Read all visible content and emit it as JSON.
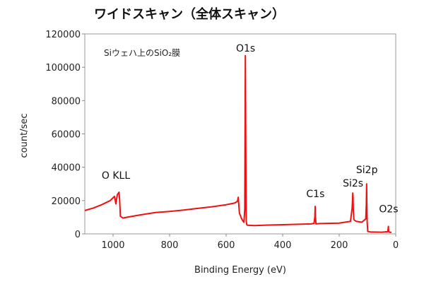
{
  "chart_data": {
    "type": "line",
    "title": "ワイドスキャン（全体スキャン）",
    "annotation": "Siウェハ上のSiO₂膜",
    "xlabel": "Binding Energy (eV)",
    "ylabel": "count/sec",
    "xlim": [
      1100,
      0
    ],
    "ylim": [
      0,
      120000
    ],
    "x_reversed": true,
    "grid": false,
    "x_ticks": [
      1000,
      800,
      600,
      400,
      200,
      0
    ],
    "y_ticks": [
      0,
      20000,
      40000,
      60000,
      80000,
      100000,
      120000
    ],
    "series": [
      {
        "color": "#ee1111",
        "x": [
          1100,
          1070,
          1040,
          1010,
          995,
          990,
          985,
          979,
          977,
          974,
          965,
          950,
          900,
          850,
          800,
          750,
          700,
          650,
          600,
          570,
          560,
          557,
          555,
          553,
          545,
          540,
          537,
          534,
          532,
          530,
          529,
          527,
          524,
          500,
          450,
          400,
          300,
          289,
          286,
          285,
          284,
          282,
          270,
          200,
          180,
          160,
          154,
          152,
          151,
          150,
          148,
          140,
          120,
          106,
          104,
          103,
          102,
          101,
          99,
          90,
          50,
          28,
          26,
          25,
          22,
          15
        ],
        "y": [
          14000,
          15500,
          17500,
          20000,
          22500,
          18000,
          23500,
          25000,
          21000,
          10500,
          9500,
          10000,
          11500,
          12800,
          13500,
          14300,
          15300,
          16300,
          17500,
          18500,
          19500,
          22000,
          17000,
          12500,
          9000,
          7500,
          7000,
          15000,
          107000,
          35000,
          8000,
          5500,
          5200,
          5000,
          5300,
          5500,
          6000,
          6300,
          10500,
          16500,
          10000,
          6000,
          6200,
          6500,
          7000,
          7500,
          16000,
          24500,
          22000,
          14000,
          8500,
          7500,
          7000,
          9000,
          18000,
          30000,
          16000,
          7000,
          1500,
          1200,
          1000,
          1300,
          4500,
          1500,
          1000,
          900
        ]
      }
    ],
    "annotations": [
      {
        "text": "O KLL",
        "x": 990,
        "y": 33000
      },
      {
        "text": "O1s",
        "x": 531,
        "y": 109500
      },
      {
        "text": "C1s",
        "x": 284,
        "y": 22000
      },
      {
        "text": "Si2s",
        "x": 151,
        "y": 28500
      },
      {
        "text": "Si2p",
        "x": 102,
        "y": 36500
      },
      {
        "text": "O2s",
        "x": 25,
        "y": 13000
      }
    ]
  }
}
